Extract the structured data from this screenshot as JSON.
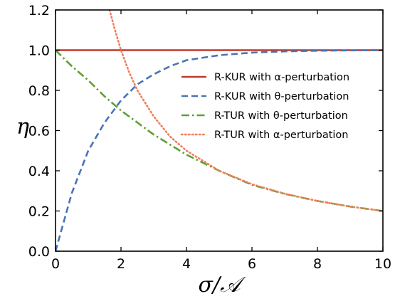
{
  "chart_data": {
    "type": "line",
    "title": "",
    "xlabel": "σ/𝒜",
    "ylabel": "η",
    "xlim": [
      0,
      10
    ],
    "ylim": [
      0,
      1.2
    ],
    "xticks": [
      "0",
      "2",
      "4",
      "6",
      "8",
      "10"
    ],
    "yticks": [
      "0.0",
      "0.2",
      "0.4",
      "0.6",
      "0.8",
      "1.0",
      "1.2"
    ],
    "grid": false,
    "legend_position": "right",
    "series": [
      {
        "name": "R-KUR with α-perturbation",
        "color": "#c0392b",
        "style": "solid",
        "x": [
          0,
          10
        ],
        "y": [
          1.0,
          1.0
        ]
      },
      {
        "name": "R-KUR with θ-perturbation",
        "color": "#4a74b4",
        "style": "dashed",
        "x": [
          0,
          0.5,
          1,
          1.5,
          2,
          2.5,
          3,
          3.5,
          4,
          5,
          6,
          7,
          8,
          9,
          10
        ],
        "y": [
          0,
          0.29,
          0.5,
          0.64,
          0.75,
          0.83,
          0.88,
          0.92,
          0.95,
          0.975,
          0.988,
          0.994,
          0.997,
          0.999,
          1.0
        ]
      },
      {
        "name": "R-TUR with θ-perturbation",
        "color": "#5fa033",
        "style": "dashdot",
        "x": [
          0,
          0.5,
          1,
          1.5,
          2,
          2.5,
          3,
          3.5,
          4,
          5,
          6,
          7,
          8,
          9,
          10
        ],
        "y": [
          1.0,
          0.92,
          0.85,
          0.77,
          0.7,
          0.64,
          0.58,
          0.53,
          0.48,
          0.4,
          0.33,
          0.285,
          0.25,
          0.222,
          0.2
        ]
      },
      {
        "name": "R-TUR with α-perturbation",
        "color": "#f07f5e",
        "style": "dotted",
        "x": [
          1.65,
          1.8,
          2.0,
          2.25,
          2.5,
          3.0,
          3.5,
          4.0,
          5.0,
          6.0,
          7.0,
          8.0,
          9.0,
          10.0
        ],
        "y": [
          1.2,
          1.11,
          1.0,
          0.89,
          0.8,
          0.67,
          0.57,
          0.5,
          0.4,
          0.333,
          0.286,
          0.25,
          0.222,
          0.2
        ]
      }
    ]
  }
}
